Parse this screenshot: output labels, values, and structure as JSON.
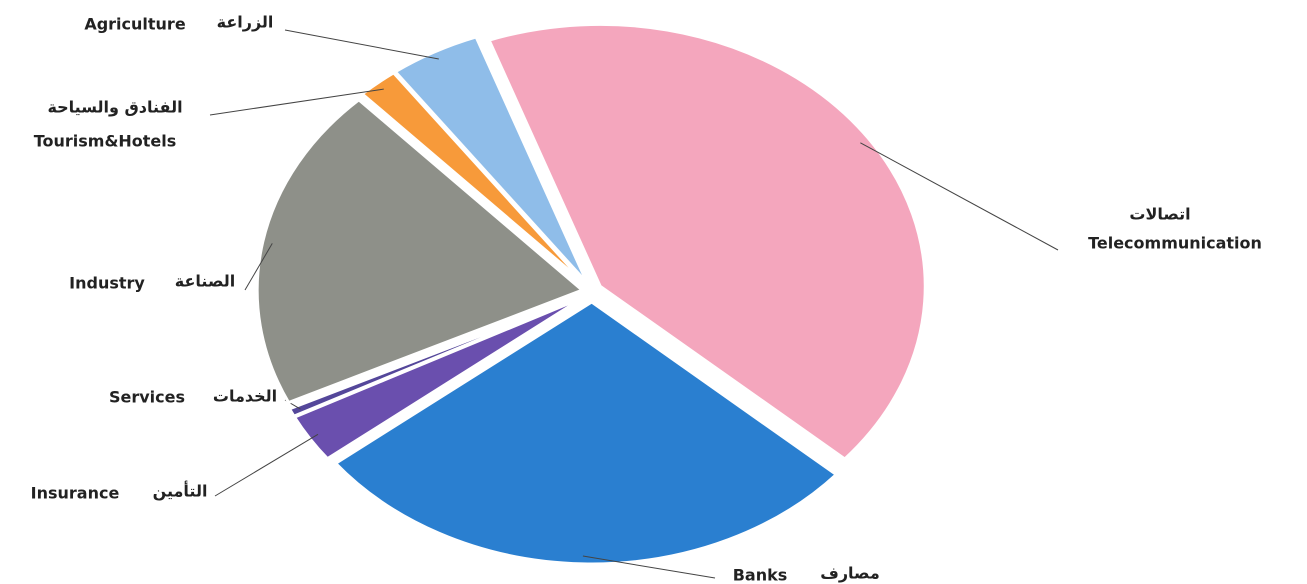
{
  "chart_data": {
    "type": "pie",
    "categories": [
      "Telecommunication",
      "Banks",
      "Insurance",
      "Services",
      "Industry",
      "Tourism&Hotels",
      "Agriculture"
    ],
    "categories_ar": [
      "اتصالات",
      "مصارف",
      "التأمين",
      "الخدمات",
      "الصناعة",
      "الفنادق والسياحة",
      "الزراعة"
    ],
    "values": [
      42,
      28,
      3,
      0.5,
      20,
      2,
      4.5
    ],
    "colors": [
      "#f4a6bd",
      "#2a7fd0",
      "#6a4fae",
      "#54479a",
      "#8e9089",
      "#f79a3a",
      "#8fbde9"
    ]
  }
}
